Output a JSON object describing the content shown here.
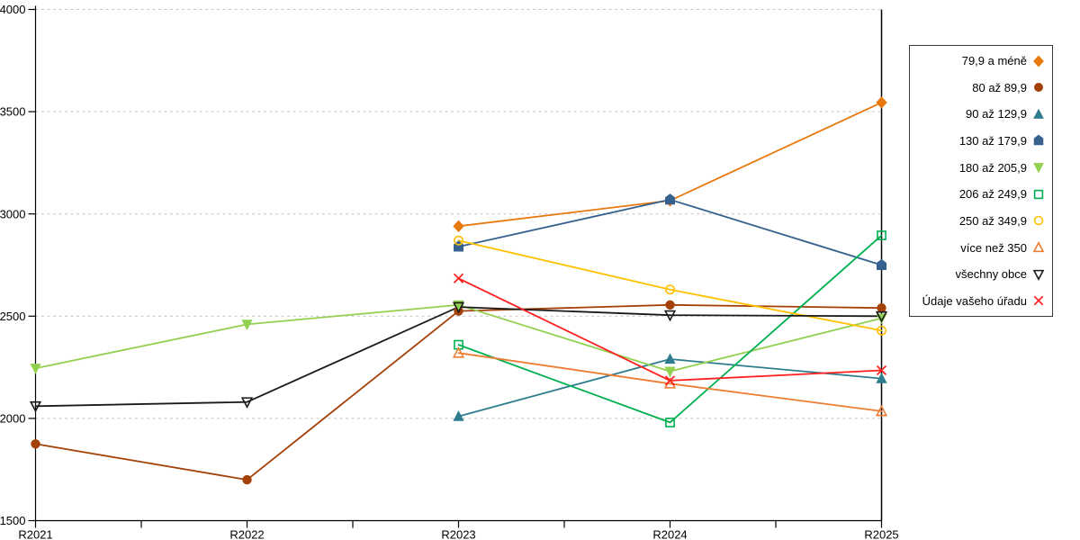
{
  "chart_data": {
    "type": "line",
    "title": "",
    "xlabel": "",
    "ylabel": "",
    "categories": [
      "R2021",
      "R2022",
      "R2023",
      "R2024",
      "R2025"
    ],
    "y_ticks": [
      1500,
      2000,
      2500,
      3000,
      3500,
      4000
    ],
    "ylim": [
      1500,
      4000
    ],
    "grid": "horizontal-dashed",
    "grid_color": "#C4C4C4",
    "axis_color": "#000000",
    "legend_position": "right-outside",
    "right_border_line_x": "R2025",
    "series": [
      {
        "name": "79,9 a méně",
        "marker": "diamond",
        "fill": "solid",
        "color": "#E8790F",
        "values": [
          null,
          null,
          2940,
          3065,
          3545
        ]
      },
      {
        "name": "80 až 89,9",
        "marker": "circle",
        "fill": "solid",
        "color": "#A34108",
        "values": [
          1875,
          1700,
          2525,
          2555,
          2540
        ]
      },
      {
        "name": "90 až 129,9",
        "marker": "triangle-up",
        "fill": "solid",
        "color": "#2E7D8E",
        "values": [
          null,
          null,
          2010,
          2290,
          2195
        ]
      },
      {
        "name": "130 až 179,9",
        "marker": "pentagon",
        "fill": "solid",
        "color": "#36618E",
        "values": [
          null,
          null,
          2840,
          3070,
          2750
        ]
      },
      {
        "name": "180 až 205,9",
        "marker": "triangle-down",
        "fill": "solid",
        "color": "#92D050",
        "values": [
          2245,
          2460,
          2555,
          2230,
          2490
        ]
      },
      {
        "name": "206 až 249,9",
        "marker": "square",
        "fill": "open",
        "color": "#00B050",
        "values": [
          null,
          null,
          2360,
          1980,
          2895
        ]
      },
      {
        "name": "250 až 349,9",
        "marker": "circle",
        "fill": "open",
        "color": "#FFC000",
        "values": [
          null,
          null,
          2870,
          2630,
          2430
        ]
      },
      {
        "name": "více než 350",
        "marker": "triangle-up",
        "fill": "open",
        "color": "#ED7D31",
        "values": [
          null,
          null,
          2320,
          2170,
          2035
        ]
      },
      {
        "name": "všechny obce",
        "marker": "triangle-down",
        "fill": "open",
        "color": "#1A1A1A",
        "values": [
          2060,
          2080,
          2545,
          2505,
          2500
        ]
      },
      {
        "name": "Údaje vašeho úřadu",
        "marker": "x",
        "fill": "open",
        "color": "#FF1F1F",
        "values": [
          null,
          null,
          2685,
          2185,
          2235
        ]
      }
    ]
  }
}
